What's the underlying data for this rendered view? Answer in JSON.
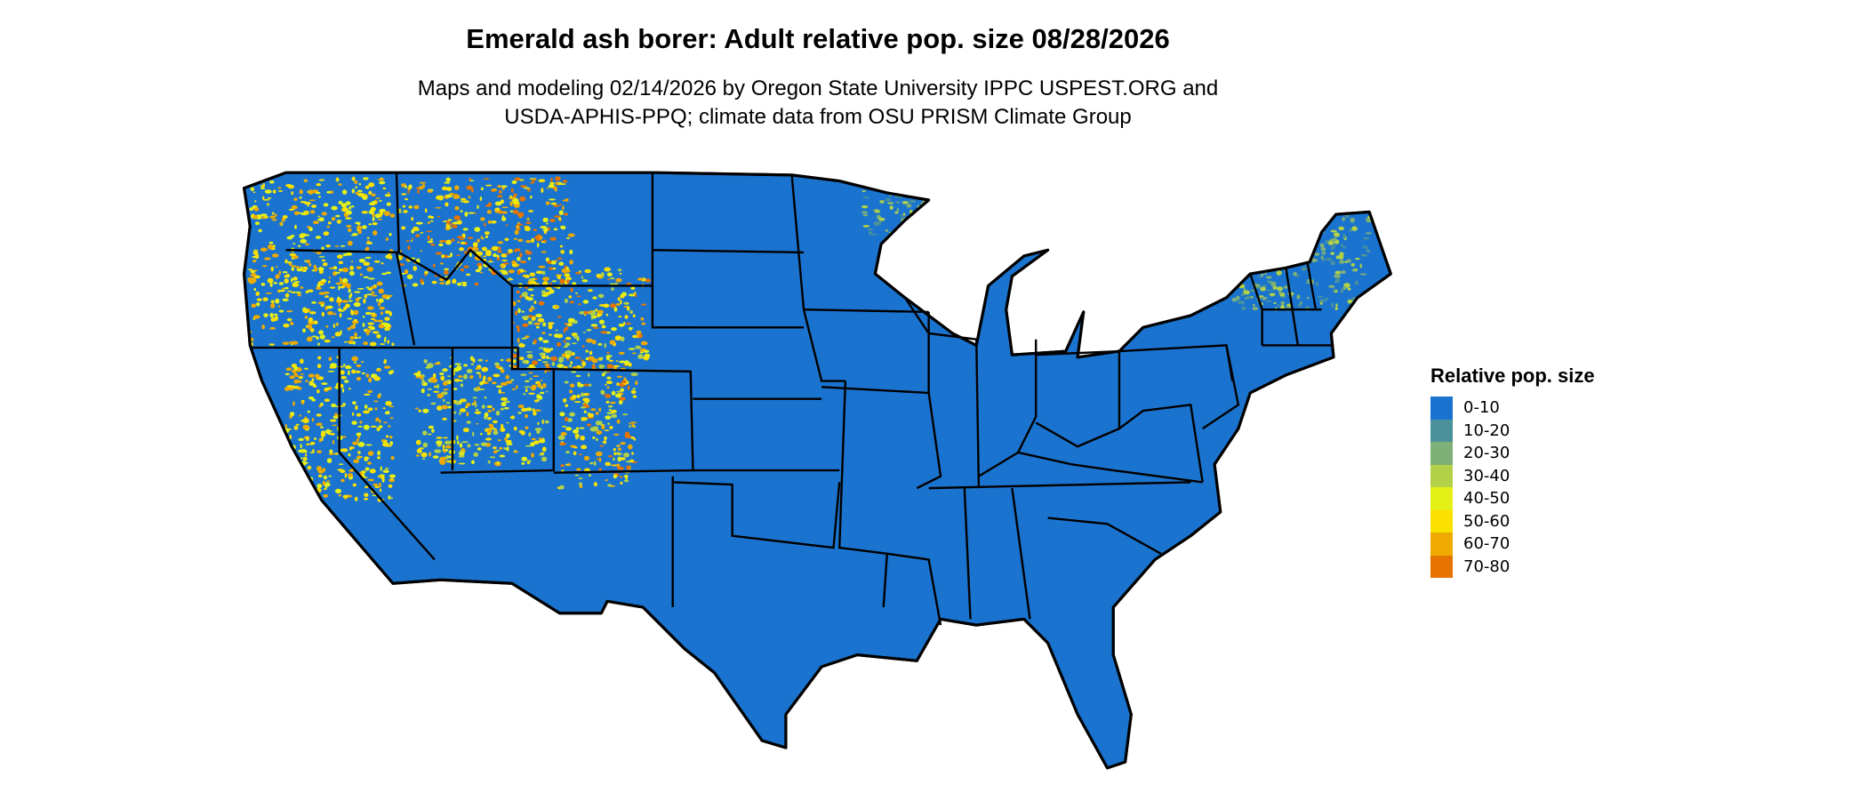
{
  "title": "Emerald ash borer: Adult relative pop. size 08/28/2026",
  "subtitle": [
    "Maps and modeling 02/14/2026 by Oregon State University IPPC USPEST.ORG and",
    "USDA-APHIS-PPQ; climate data from OSU PRISM Climate Group"
  ],
  "map": {
    "region": "contiguous United States",
    "dominant_class": "0-10",
    "hotspot_regions": [
      "Pacific Northwest",
      "Northern Rockies",
      "Colorado Rockies",
      "Sierra Nevada",
      "Upper Peninsula Michigan",
      "Northern New England"
    ]
  },
  "legend": {
    "title": "Relative pop. size",
    "items": [
      {
        "label": "0-10",
        "color": "#1A74CF"
      },
      {
        "label": "10-20",
        "color": "#4A919B"
      },
      {
        "label": "20-30",
        "color": "#7FB077"
      },
      {
        "label": "30-40",
        "color": "#B2D147"
      },
      {
        "label": "40-50",
        "color": "#E5F018"
      },
      {
        "label": "50-60",
        "color": "#FAE100"
      },
      {
        "label": "60-70",
        "color": "#EEAA00"
      },
      {
        "label": "70-80",
        "color": "#E67300"
      }
    ]
  }
}
